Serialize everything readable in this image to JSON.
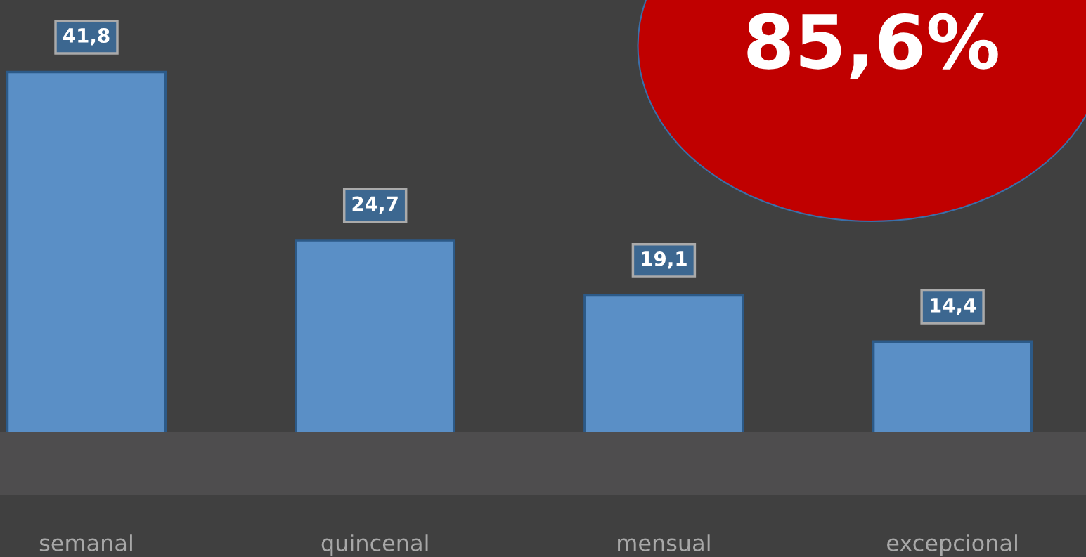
{
  "chart_data": {
    "type": "bar",
    "categories": [
      "semanal",
      "quincenal",
      "mensual",
      "excepcional"
    ],
    "values": [
      41.8,
      24.7,
      19.1,
      14.4
    ],
    "value_labels": [
      "41,8",
      "24,7",
      "19,1",
      "14,4"
    ],
    "color": "#5a8fc6",
    "annotations": [
      "85,6%"
    ]
  }
}
